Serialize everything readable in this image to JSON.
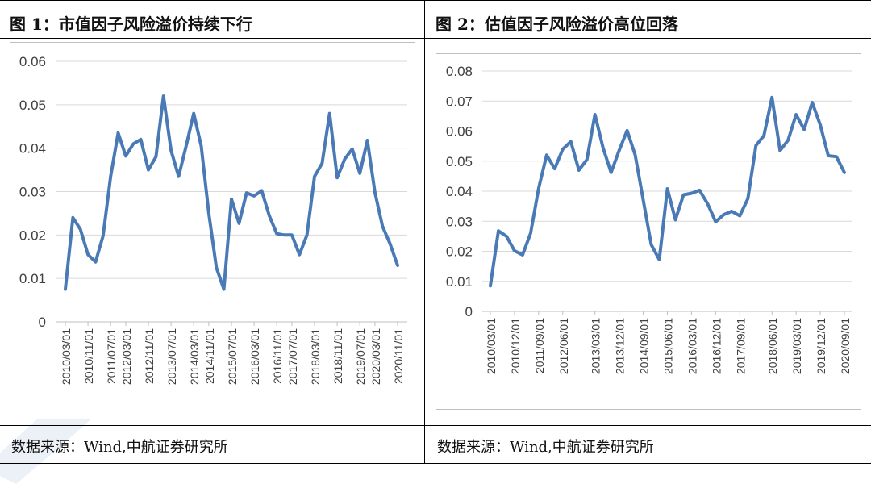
{
  "panels": [
    {
      "title": "图 1：市值因子风险溢价持续下行",
      "source": "数据来源：Wind,中航证券研究所"
    },
    {
      "title": "图 2：估值因子风险溢价高位回落",
      "source": "数据来源：Wind,中航证券研究所"
    }
  ],
  "chart_data": [
    {
      "type": "line",
      "ylim": [
        0,
        0.06
      ],
      "yticks": [
        "0",
        "0.01",
        "0.02",
        "0.03",
        "0.04",
        "0.05",
        "0.06"
      ],
      "x_tick_labels": [
        "2010/03/01",
        "2010/11/01",
        "2011/07/01",
        "2012/03/01",
        "2012/11/01",
        "2013/07/01",
        "2014/03/01",
        "2014/11/01",
        "2015/07/01",
        "2016/03/01",
        "2016/11/01",
        "2017/07/01",
        "2018/03/01",
        "2018/11/01",
        "2019/07/01",
        "2020/03/01",
        "2020/11/01"
      ],
      "line_color": "#4a7ab5",
      "series": [
        {
          "values": [
            0.0075,
            0.024,
            0.0213,
            0.0155,
            0.0138,
            0.0198,
            0.0335,
            0.0435,
            0.0382,
            0.041,
            0.042,
            0.035,
            0.038,
            0.052,
            0.0395,
            0.0335,
            0.0405,
            0.048,
            0.0405,
            0.025,
            0.0125,
            0.0075,
            0.0283,
            0.0227,
            0.0297,
            0.029,
            0.0302,
            0.0245,
            0.0203,
            0.02,
            0.02,
            0.0155,
            0.02,
            0.0335,
            0.0365,
            0.048,
            0.0332,
            0.0375,
            0.0398,
            0.0342,
            0.0418,
            0.0298,
            0.022,
            0.018,
            0.013
          ]
        }
      ]
    },
    {
      "type": "line",
      "ylim": [
        0,
        0.08
      ],
      "yticks": [
        "0",
        "0.01",
        "0.02",
        "0.03",
        "0.04",
        "0.05",
        "0.06",
        "0.07",
        "0.08"
      ],
      "x_tick_labels": [
        "2010/03/01",
        "2010/12/01",
        "2011/09/01",
        "2012/06/01",
        "2013/03/01",
        "2013/12/01",
        "2014/09/01",
        "2015/06/01",
        "2016/03/01",
        "2016/12/01",
        "2017/09/01",
        "2018/06/01",
        "2019/03/01",
        "2019/12/01",
        "2020/09/01"
      ],
      "line_color": "#4a7ab5",
      "series": [
        {
          "values": [
            0.0085,
            0.0268,
            0.025,
            0.0202,
            0.0188,
            0.026,
            0.041,
            0.052,
            0.0475,
            0.054,
            0.0565,
            0.047,
            0.0505,
            0.0655,
            0.0545,
            0.0462,
            0.0535,
            0.0602,
            0.052,
            0.037,
            0.0222,
            0.0172,
            0.0408,
            0.0305,
            0.0388,
            0.0393,
            0.0403,
            0.0358,
            0.0298,
            0.0322,
            0.0333,
            0.0318,
            0.0375,
            0.0552,
            0.0585,
            0.0712,
            0.0535,
            0.057,
            0.0655,
            0.0605,
            0.0695,
            0.062,
            0.0518,
            0.0515,
            0.0462
          ]
        }
      ]
    }
  ]
}
